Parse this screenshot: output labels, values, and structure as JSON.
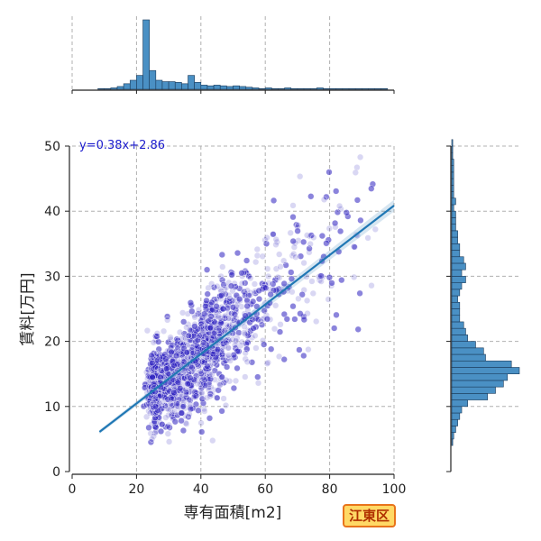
{
  "chart_data": {
    "type": "scatter",
    "title": "",
    "xlabel": "専有面積[m2]",
    "ylabel": "賃料[万円]",
    "xlim": [
      0,
      100
    ],
    "ylim": [
      0,
      50
    ],
    "xticks": [
      0,
      20,
      40,
      60,
      80,
      100
    ],
    "yticks": [
      0,
      10,
      20,
      30,
      40,
      50
    ],
    "grid": true,
    "point_color": "#2b1fbf",
    "line_color": "#1f77b4",
    "hist_color": "#4a90c4",
    "regression": {
      "label": "y=0.38x+2.86",
      "slope": 0.38,
      "intercept": 2.86,
      "x_range": [
        8.5,
        100
      ],
      "label_color": "#1a1acc"
    },
    "annotation": "江東区",
    "marginal_x_hist": {
      "bin_width": 2,
      "bins_start": 8,
      "counts": [
        1,
        1,
        2,
        4,
        8,
        13,
        20,
        100,
        27,
        13,
        11,
        11,
        10,
        8,
        20,
        10,
        6,
        5,
        6,
        5,
        4,
        5,
        4,
        3,
        2,
        1,
        2,
        1,
        1,
        2,
        1,
        1,
        1,
        1,
        2,
        1,
        1,
        1,
        1,
        1,
        1,
        1,
        1,
        1,
        1
      ]
    },
    "marginal_y_hist": {
      "bin_width": 1,
      "bins_start": 4,
      "counts": [
        0.5,
        1,
        2,
        3,
        4,
        5,
        8,
        18,
        22,
        26,
        28,
        34,
        30,
        17,
        16,
        12,
        8,
        7,
        6,
        4,
        4,
        4,
        3,
        4,
        5,
        7,
        5,
        7,
        6,
        4,
        4,
        3,
        3,
        2,
        2,
        2,
        1,
        2,
        1,
        1,
        1,
        1,
        1,
        1,
        0.5,
        0.5,
        0.5
      ]
    }
  }
}
